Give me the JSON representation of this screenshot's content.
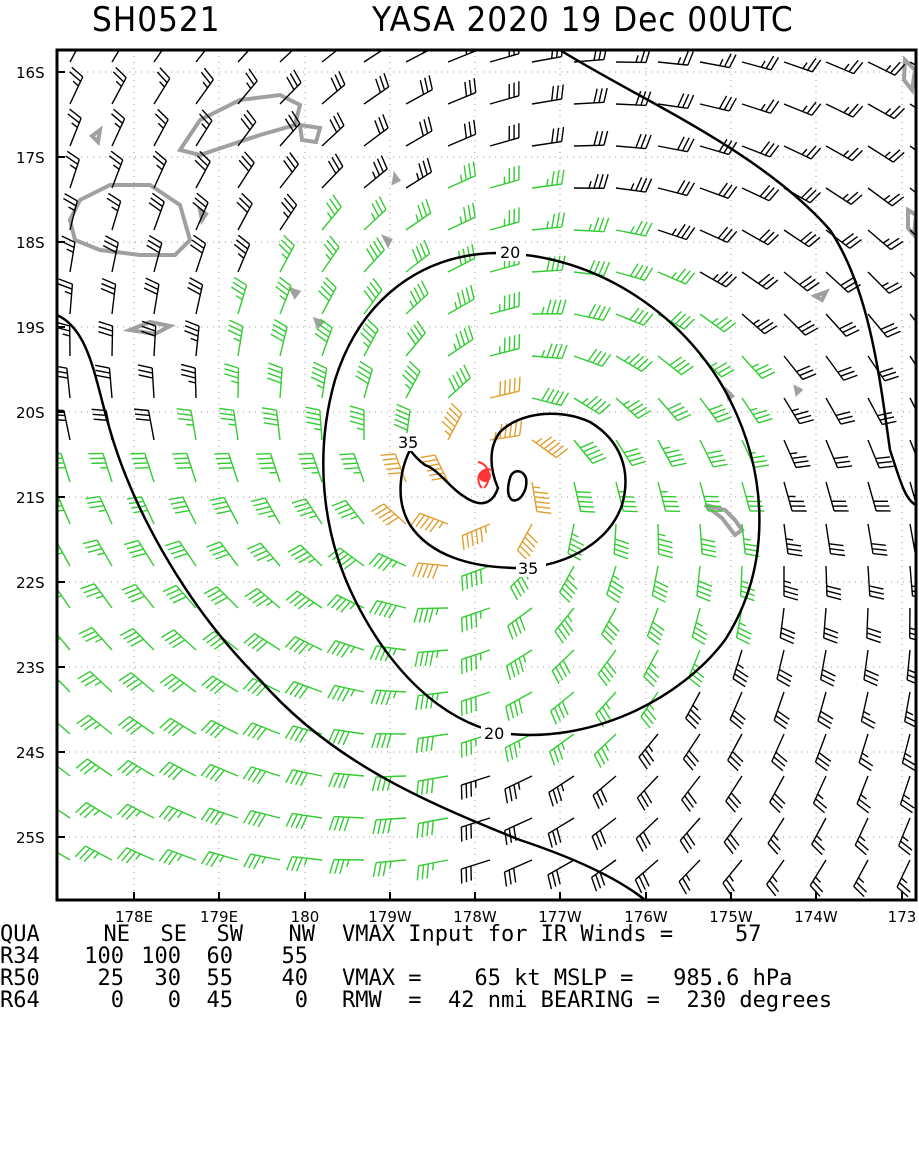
{
  "header": {
    "storm_id": "SH0521",
    "storm_info": "YASA 2020 19 Dec 00UTC"
  },
  "map": {
    "lat_labels": [
      "16S",
      "17S",
      "18S",
      "19S",
      "20S",
      "21S",
      "22S",
      "23S",
      "24S",
      "25S"
    ],
    "lon_labels": [
      "178E",
      "179E",
      "180",
      "179W",
      "178W",
      "177W",
      "176W",
      "175W",
      "174W",
      "173"
    ],
    "contour_labels": [
      "20",
      "35",
      "35",
      "20"
    ],
    "colors": {
      "land": "#a0a0a0",
      "barb_weak": "#000000",
      "barb_gale": "#33cc33",
      "barb_storm": "#e0a030",
      "center": "#ff3333",
      "contour": "#000000"
    }
  },
  "table": {
    "quadrant_header": [
      "QUA",
      "NE",
      "SE",
      "SW",
      "NW"
    ],
    "rows": [
      {
        "label": "R34",
        "ne": "100",
        "se": "100",
        "sw": "60",
        "nw": "55"
      },
      {
        "label": "R50",
        "ne": "25",
        "se": "30",
        "sw": "55",
        "nw": "40"
      },
      {
        "label": "R64",
        "ne": "0",
        "se": "0",
        "sw": "45",
        "nw": "0"
      }
    ],
    "info": {
      "vmax_input_label": "VMAX Input for IR Winds =",
      "vmax_input_value": "57",
      "vmax_line": "VMAX =    65 kt MSLP =   985.6 hPa",
      "rmw_line": "RMW  =  42 nmi BEARING =  230 degrees"
    }
  }
}
